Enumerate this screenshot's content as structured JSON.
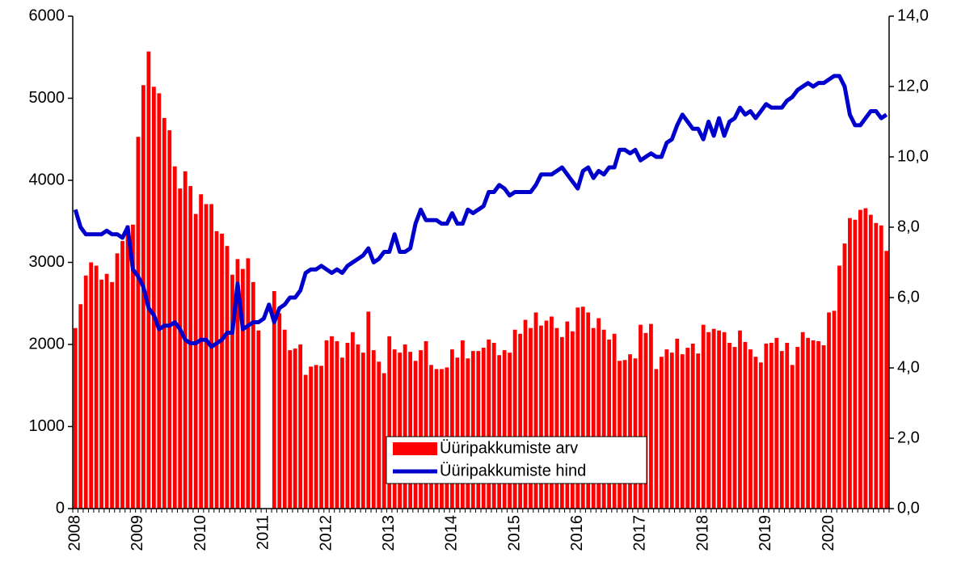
{
  "chart_data": {
    "type": "bar_line",
    "categories": [
      "2008",
      null,
      null,
      null,
      null,
      null,
      null,
      null,
      null,
      null,
      null,
      null,
      "2009",
      null,
      null,
      null,
      null,
      null,
      null,
      null,
      null,
      null,
      null,
      null,
      "2010",
      null,
      null,
      null,
      null,
      null,
      null,
      null,
      null,
      null,
      null,
      null,
      "2011",
      null,
      null,
      null,
      null,
      null,
      null,
      null,
      null,
      null,
      null,
      null,
      "2012",
      null,
      null,
      null,
      null,
      null,
      null,
      null,
      null,
      null,
      null,
      null,
      "2013",
      null,
      null,
      null,
      null,
      null,
      null,
      null,
      null,
      null,
      null,
      null,
      "2014",
      null,
      null,
      null,
      null,
      null,
      null,
      null,
      null,
      null,
      null,
      null,
      "2015",
      null,
      null,
      null,
      null,
      null,
      null,
      null,
      null,
      null,
      null,
      null,
      "2016",
      null,
      null,
      null,
      null,
      null,
      null,
      null,
      null,
      null,
      null,
      null,
      "2017",
      null,
      null,
      null,
      null,
      null,
      null,
      null,
      null,
      null,
      null,
      null,
      "2018",
      null,
      null,
      null,
      null,
      null,
      null,
      null,
      null,
      null,
      null,
      null,
      "2019",
      null,
      null,
      null,
      null,
      null,
      null,
      null,
      null,
      null,
      null,
      null,
      "2020",
      null,
      null,
      null,
      null,
      null,
      null,
      null,
      null,
      null,
      null,
      null
    ],
    "series": [
      {
        "name": "Üüripakkumiste arv",
        "type": "bar",
        "color": "#ff0000",
        "values": [
          2200,
          2490,
          2840,
          3000,
          2960,
          2790,
          2860,
          2760,
          3110,
          3260,
          3450,
          3460,
          4530,
          5160,
          5570,
          5140,
          5060,
          4760,
          4610,
          4170,
          3900,
          4110,
          3930,
          3590,
          3830,
          3710,
          3710,
          3380,
          3350,
          3200,
          2850,
          3040,
          2920,
          3050,
          2760,
          2170,
          null,
          null,
          2650,
          2380,
          2180,
          1930,
          1950,
          2000,
          1630,
          1730,
          1750,
          1740,
          2050,
          2100,
          2040,
          1840,
          2020,
          2150,
          2000,
          1900,
          2400,
          1930,
          1790,
          1650,
          2100,
          1940,
          1900,
          2000,
          1910,
          1800,
          1930,
          2040,
          1750,
          1700,
          1700,
          1720,
          1940,
          1840,
          2050,
          1830,
          1920,
          1920,
          1960,
          2060,
          2020,
          1870,
          1930,
          1900,
          2180,
          2130,
          2300,
          2200,
          2390,
          2230,
          2290,
          2340,
          2200,
          2090,
          2280,
          2160,
          2450,
          2460,
          2390,
          2200,
          2320,
          2180,
          2060,
          2130,
          1800,
          1810,
          1880,
          1830,
          2240,
          2140,
          2250,
          1700,
          1850,
          1940,
          1900,
          2070,
          1880,
          1960,
          2010,
          1890,
          2240,
          2150,
          2190,
          2170,
          2150,
          2020,
          1970,
          2170,
          2030,
          1940,
          1850,
          1780,
          2010,
          2020,
          2080,
          1920,
          2020,
          1750,
          1970,
          2150,
          2080,
          2050,
          2040,
          1990,
          2390,
          2410,
          2960,
          3230,
          3540,
          3520,
          3640,
          3660,
          3580,
          3480,
          3450,
          3140
        ]
      },
      {
        "name": "Üüripakkumiste hind",
        "type": "line",
        "axis": "y2",
        "color": "#0000cc",
        "values": [
          8.5,
          8.0,
          7.8,
          7.8,
          7.8,
          7.8,
          7.9,
          7.8,
          7.8,
          7.7,
          8.0,
          6.8,
          6.6,
          6.3,
          5.7,
          5.5,
          5.1,
          5.2,
          5.2,
          5.3,
          5.1,
          4.8,
          4.7,
          4.7,
          4.8,
          4.8,
          4.6,
          4.7,
          4.8,
          5.0,
          5.0,
          6.4,
          5.1,
          5.2,
          5.3,
          5.3,
          5.4,
          5.8,
          5.3,
          5.7,
          5.8,
          6.0,
          6.0,
          6.2,
          6.7,
          6.8,
          6.8,
          6.9,
          6.8,
          6.7,
          6.8,
          6.7,
          6.9,
          7.0,
          7.1,
          7.2,
          7.4,
          7.0,
          7.1,
          7.3,
          7.3,
          7.8,
          7.3,
          7.3,
          7.4,
          8.1,
          8.5,
          8.2,
          8.2,
          8.2,
          8.1,
          8.1,
          8.4,
          8.1,
          8.1,
          8.5,
          8.4,
          8.5,
          8.6,
          9.0,
          9.0,
          9.2,
          9.1,
          8.9,
          9.0,
          9.0,
          9.0,
          9.0,
          9.2,
          9.5,
          9.5,
          9.5,
          9.6,
          9.7,
          9.5,
          9.3,
          9.1,
          9.6,
          9.7,
          9.4,
          9.6,
          9.5,
          9.7,
          9.7,
          10.2,
          10.2,
          10.1,
          10.2,
          9.9,
          10.0,
          10.1,
          10.0,
          10.0,
          10.4,
          10.5,
          10.9,
          11.2,
          11.0,
          10.8,
          10.8,
          10.5,
          11.0,
          10.6,
          11.1,
          10.6,
          11.0,
          11.1,
          11.4,
          11.2,
          11.3,
          11.1,
          11.3,
          11.5,
          11.4,
          11.4,
          11.4,
          11.6,
          11.7,
          11.9,
          12.0,
          12.1,
          12.0,
          12.1,
          12.1,
          12.2,
          12.3,
          12.3,
          12.0,
          11.2,
          10.9,
          10.9,
          11.1,
          11.3,
          11.3,
          11.1,
          11.2
        ]
      }
    ],
    "ylim": [
      0,
      6000
    ],
    "yticks": [
      0,
      1000,
      2000,
      3000,
      4000,
      5000,
      6000
    ],
    "y2lim": [
      0,
      14
    ],
    "y2ticks": [
      {
        "value": 0,
        "label": "0,0"
      },
      {
        "value": 2,
        "label": "2,0"
      },
      {
        "value": 4,
        "label": "4,0"
      },
      {
        "value": 6,
        "label": "6,0"
      },
      {
        "value": 8,
        "label": "8,0"
      },
      {
        "value": 10,
        "label": "10,0"
      },
      {
        "value": 12,
        "label": "12,0"
      },
      {
        "value": 14,
        "label": "14,0"
      }
    ],
    "legend": "lower center"
  }
}
